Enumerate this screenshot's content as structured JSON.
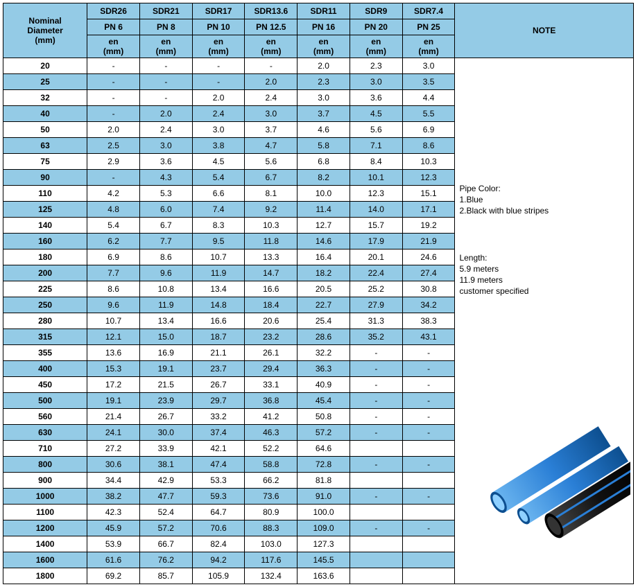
{
  "header": {
    "nominal": "Nominal\nDiameter\n(mm)",
    "sdr": [
      "SDR26",
      "SDR21",
      "SDR17",
      "SDR13.6",
      "SDR11",
      "SDR9",
      "SDR7.4"
    ],
    "pn": [
      "PN 6",
      "PN 8",
      "PN 10",
      "PN 12.5",
      "PN 16",
      "PN 20",
      "PN 25"
    ],
    "en_label": "en",
    "en_unit": "(mm)",
    "note_label": "NOTE"
  },
  "colors": {
    "header_bg": "#94cbe6",
    "row_alt_bg": "#94cbe6",
    "row_bg": "#ffffff",
    "border": "#000000",
    "text": "#000000"
  },
  "rows": [
    {
      "d": "20",
      "v": [
        "-",
        "-",
        "-",
        "-",
        "2.0",
        "2.3",
        "3.0"
      ]
    },
    {
      "d": "25",
      "v": [
        "-",
        "-",
        "-",
        "2.0",
        "2.3",
        "3.0",
        "3.5"
      ]
    },
    {
      "d": "32",
      "v": [
        "-",
        "-",
        "2.0",
        "2.4",
        "3.0",
        "3.6",
        "4.4"
      ]
    },
    {
      "d": "40",
      "v": [
        "-",
        "2.0",
        "2.4",
        "3.0",
        "3.7",
        "4.5",
        "5.5"
      ]
    },
    {
      "d": "50",
      "v": [
        "2.0",
        "2.4",
        "3.0",
        "3.7",
        "4.6",
        "5.6",
        "6.9"
      ]
    },
    {
      "d": "63",
      "v": [
        "2.5",
        "3.0",
        "3.8",
        "4.7",
        "5.8",
        "7.1",
        "8.6"
      ]
    },
    {
      "d": "75",
      "v": [
        "2.9",
        "3.6",
        "4.5",
        "5.6",
        "6.8",
        "8.4",
        "10.3"
      ]
    },
    {
      "d": "90",
      "v": [
        "-",
        "4.3",
        "5.4",
        "6.7",
        "8.2",
        "10.1",
        "12.3"
      ]
    },
    {
      "d": "110",
      "v": [
        "4.2",
        "5.3",
        "6.6",
        "8.1",
        "10.0",
        "12.3",
        "15.1"
      ]
    },
    {
      "d": "125",
      "v": [
        "4.8",
        "6.0",
        "7.4",
        "9.2",
        "11.4",
        "14.0",
        "17.1"
      ]
    },
    {
      "d": "140",
      "v": [
        "5.4",
        "6.7",
        "8.3",
        "10.3",
        "12.7",
        "15.7",
        "19.2"
      ]
    },
    {
      "d": "160",
      "v": [
        "6.2",
        "7.7",
        "9.5",
        "11.8",
        "14.6",
        "17.9",
        "21.9"
      ]
    },
    {
      "d": "180",
      "v": [
        "6.9",
        "8.6",
        "10.7",
        "13.3",
        "16.4",
        "20.1",
        "24.6"
      ]
    },
    {
      "d": "200",
      "v": [
        "7.7",
        "9.6",
        "11.9",
        "14.7",
        "18.2",
        "22.4",
        "27.4"
      ]
    },
    {
      "d": "225",
      "v": [
        "8.6",
        "10.8",
        "13.4",
        "16.6",
        "20.5",
        "25.2",
        "30.8"
      ]
    },
    {
      "d": "250",
      "v": [
        "9.6",
        "11.9",
        "14.8",
        "18.4",
        "22.7",
        "27.9",
        "34.2"
      ]
    },
    {
      "d": "280",
      "v": [
        "10.7",
        "13.4",
        "16.6",
        "20.6",
        "25.4",
        "31.3",
        "38.3"
      ]
    },
    {
      "d": "315",
      "v": [
        "12.1",
        "15.0",
        "18.7",
        "23.2",
        "28.6",
        "35.2",
        "43.1"
      ]
    },
    {
      "d": "355",
      "v": [
        "13.6",
        "16.9",
        "21.1",
        "26.1",
        "32.2",
        "-",
        "-"
      ]
    },
    {
      "d": "400",
      "v": [
        "15.3",
        "19.1",
        "23.7",
        "29.4",
        "36.3",
        "-",
        "-"
      ]
    },
    {
      "d": "450",
      "v": [
        "17.2",
        "21.5",
        "26.7",
        "33.1",
        "40.9",
        "-",
        "-"
      ]
    },
    {
      "d": "500",
      "v": [
        "19.1",
        "23.9",
        "29.7",
        "36.8",
        "45.4",
        "-",
        "-"
      ]
    },
    {
      "d": "560",
      "v": [
        "21.4",
        "26.7",
        "33.2",
        "41.2",
        "50.8",
        "-",
        "-"
      ]
    },
    {
      "d": "630",
      "v": [
        "24.1",
        "30.0",
        "37.4",
        "46.3",
        "57.2",
        "-",
        "-"
      ]
    },
    {
      "d": "710",
      "v": [
        "27.2",
        "33.9",
        "42.1",
        "52.2",
        "64.6",
        "",
        ""
      ]
    },
    {
      "d": "800",
      "v": [
        "30.6",
        "38.1",
        "47.4",
        "58.8",
        "72.8",
        "-",
        "-"
      ]
    },
    {
      "d": "900",
      "v": [
        "34.4",
        "42.9",
        "53.3",
        "66.2",
        "81.8",
        "",
        ""
      ]
    },
    {
      "d": "1000",
      "v": [
        "38.2",
        "47.7",
        "59.3",
        "73.6",
        "91.0",
        "-",
        "-"
      ]
    },
    {
      "d": "1100",
      "v": [
        "42.3",
        "52.4",
        "64.7",
        "80.9",
        "100.0",
        "",
        ""
      ]
    },
    {
      "d": "1200",
      "v": [
        "45.9",
        "57.2",
        "70.6",
        "88.3",
        "109.0",
        "-",
        "-"
      ]
    },
    {
      "d": "1400",
      "v": [
        "53.9",
        "66.7",
        "82.4",
        "103.0",
        "127.3",
        "",
        ""
      ]
    },
    {
      "d": "1600",
      "v": [
        "61.6",
        "76.2",
        "94.2",
        "117.6",
        "145.5",
        "",
        ""
      ]
    },
    {
      "d": "1800",
      "v": [
        "69.2",
        "85.7",
        "105.9",
        "132.4",
        "163.6",
        "",
        ""
      ]
    }
  ],
  "note": {
    "lines": [
      "Pipe Color:",
      "1.Blue",
      "2.Black with blue stripes",
      "",
      "Length:",
      "5.9 meters",
      "11.9 meters",
      "customer specified"
    ]
  },
  "pipe_svg": {
    "blue": "#2a7fd6",
    "blue_light": "#6cb6f0",
    "black": "#111111",
    "stripe": "#2a7fd6"
  }
}
